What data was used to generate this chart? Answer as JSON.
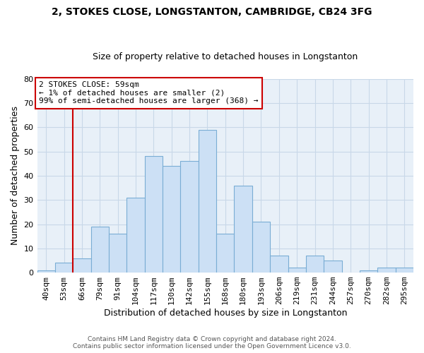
{
  "title": "2, STOKES CLOSE, LONGSTANTON, CAMBRIDGE, CB24 3FG",
  "subtitle": "Size of property relative to detached houses in Longstanton",
  "xlabel": "Distribution of detached houses by size in Longstanton",
  "ylabel": "Number of detached properties",
  "footer_lines": [
    "Contains HM Land Registry data © Crown copyright and database right 2024.",
    "Contains public sector information licensed under the Open Government Licence v3.0."
  ],
  "bin_labels": [
    "40sqm",
    "53sqm",
    "66sqm",
    "79sqm",
    "91sqm",
    "104sqm",
    "117sqm",
    "130sqm",
    "142sqm",
    "155sqm",
    "168sqm",
    "180sqm",
    "193sqm",
    "206sqm",
    "219sqm",
    "231sqm",
    "244sqm",
    "257sqm",
    "270sqm",
    "282sqm",
    "295sqm"
  ],
  "bar_values": [
    1,
    4,
    6,
    19,
    16,
    31,
    48,
    44,
    46,
    59,
    16,
    36,
    21,
    7,
    2,
    7,
    5,
    0,
    1,
    2,
    2
  ],
  "bar_color": "#cce0f5",
  "bar_edge_color": "#7aadd4",
  "ylim": [
    0,
    80
  ],
  "yticks": [
    0,
    10,
    20,
    30,
    40,
    50,
    60,
    70,
    80
  ],
  "vline_x_index": 1.5,
  "vline_color": "#cc0000",
  "annotation_text": "2 STOKES CLOSE: 59sqm\n← 1% of detached houses are smaller (2)\n99% of semi-detached houses are larger (368) →",
  "annotation_box_color": "#ffffff",
  "annotation_box_edge_color": "#cc0000",
  "background_color": "#ffffff",
  "plot_bg_color": "#e8f0f8",
  "grid_color": "#c8d8e8",
  "title_fontsize": 10,
  "subtitle_fontsize": 9,
  "annotation_fontsize": 8,
  "tick_fontsize": 8,
  "label_fontsize": 9,
  "footer_fontsize": 6.5
}
